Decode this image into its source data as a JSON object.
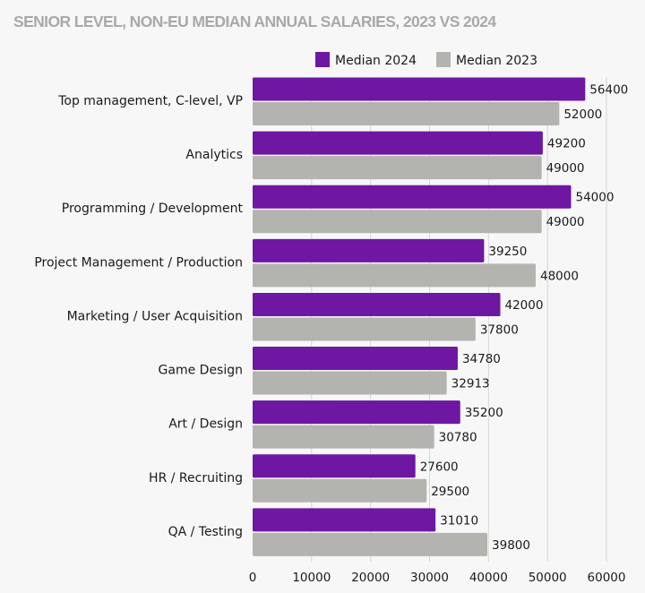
{
  "chart_data": {
    "type": "bar",
    "orientation": "horizontal",
    "title": "SENIOR LEVEL, NON-EU MEDIAN ANNUAL SALARIES, 2023 VS 2024",
    "xlabel": "",
    "ylabel": "",
    "categories": [
      "Top management, C-level, VP",
      "Analytics",
      "Programming / Development",
      "Project Management / Production",
      "Marketing / User Acquisition",
      "Game Design",
      "Art / Design",
      "HR / Recruiting",
      "QA / Testing"
    ],
    "series": [
      {
        "name": "Median 2024",
        "color": "#6e17a2",
        "values": [
          56400,
          49200,
          54000,
          39250,
          42000,
          34780,
          35200,
          27600,
          31010
        ]
      },
      {
        "name": "Median 2023",
        "color": "#b3b3b0",
        "values": [
          52000,
          49000,
          49000,
          48000,
          37800,
          32913,
          30780,
          29500,
          39800
        ]
      }
    ],
    "xlim": [
      0,
      60000
    ],
    "xticks": [
      "0",
      "10000",
      "20000",
      "30000",
      "40000",
      "50000",
      "60000"
    ],
    "xtick_values": [
      0,
      10000,
      20000,
      30000,
      40000,
      50000,
      60000
    ],
    "grid": true,
    "legend": "top-right",
    "data_labels": true
  }
}
